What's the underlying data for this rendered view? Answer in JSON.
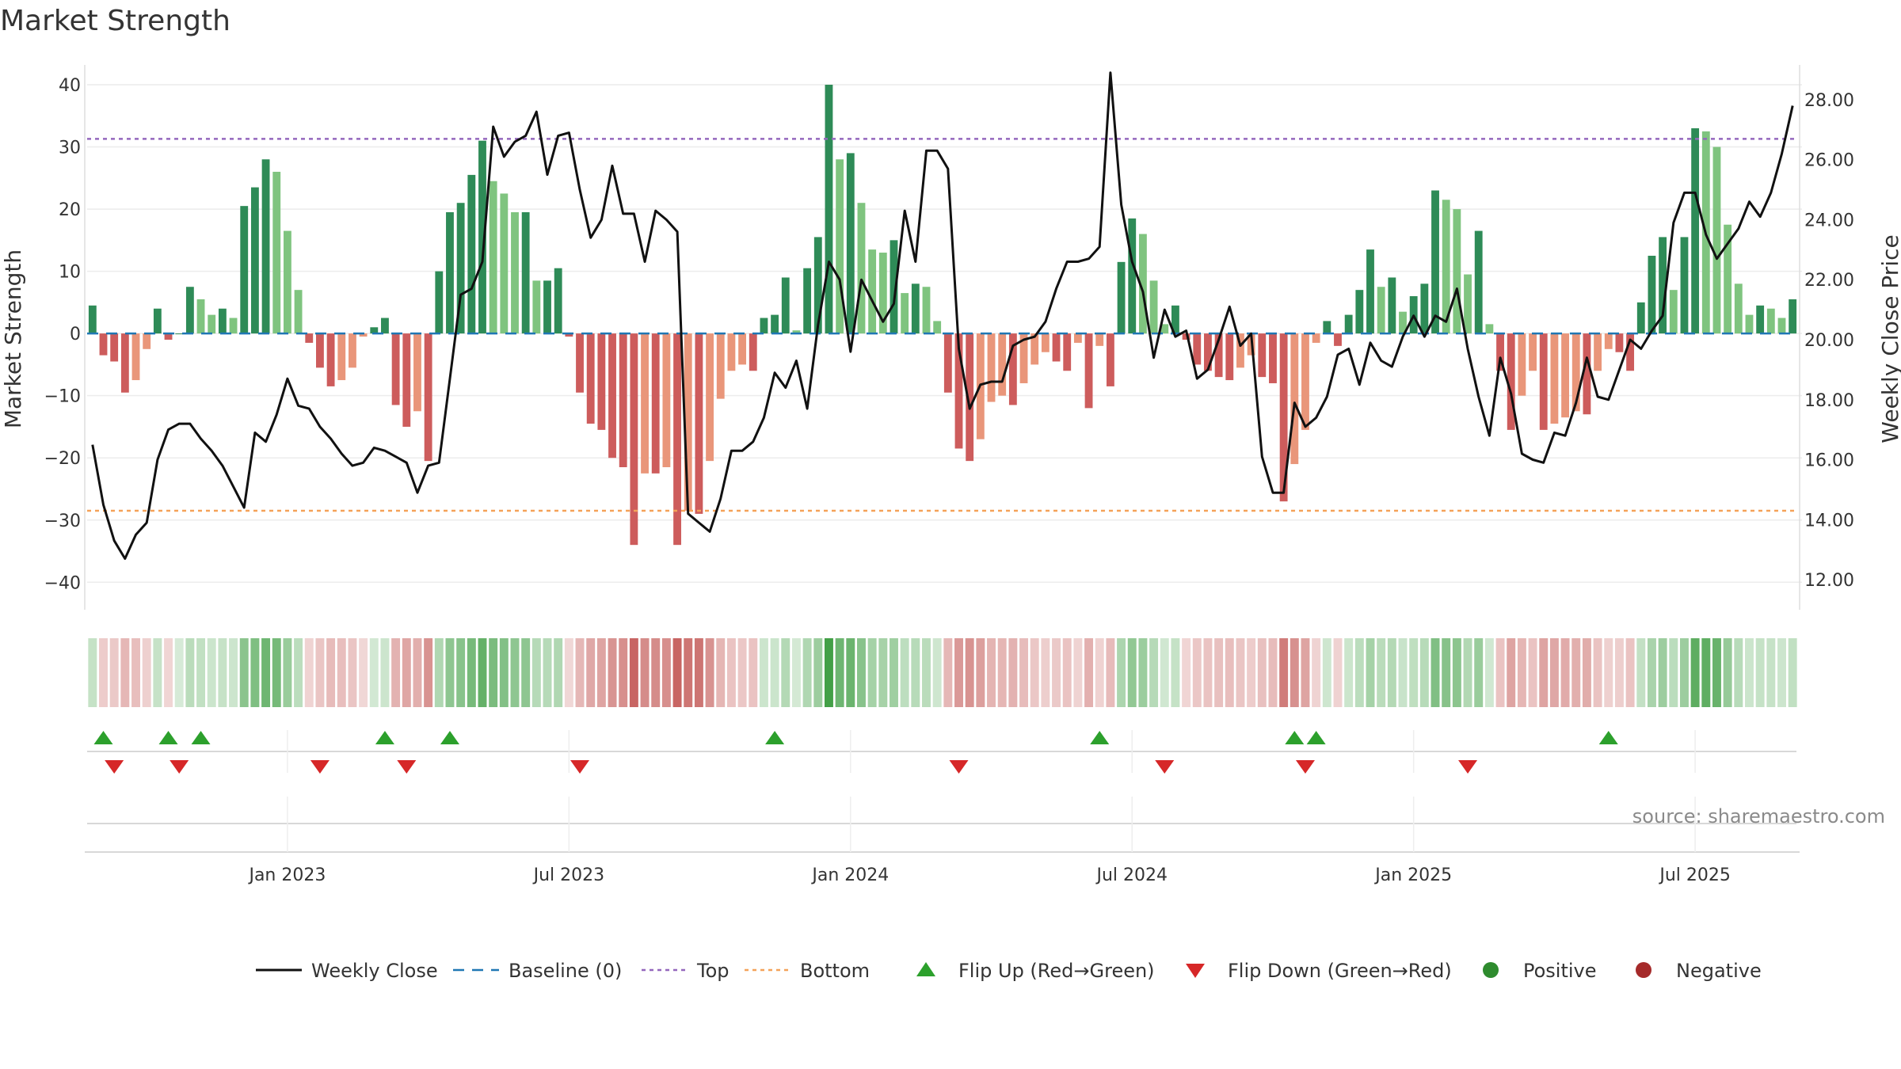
{
  "chart_data": {
    "type": "bar",
    "title": "Market Strength",
    "ylabel_left": "Market Strength",
    "ylabel_right": "Weekly Close Price",
    "ylim_left": [
      -42,
      40
    ],
    "ylim_right": [
      11.5,
      28.5
    ],
    "left_ticks": [
      40,
      30,
      20,
      10,
      0,
      -10,
      -20,
      -30,
      -40
    ],
    "left_tick_labels": [
      "40",
      "30",
      "20",
      "10",
      "0",
      "−10",
      "−20",
      "−30",
      "−40"
    ],
    "right_ticks": [
      28,
      26,
      24,
      22,
      20,
      18,
      16,
      14,
      12
    ],
    "right_tick_labels": [
      "28.00",
      "26.00",
      "24.00",
      "22.00",
      "20.00",
      "18.00",
      "16.00",
      "14.00",
      "12.00"
    ],
    "x_tick_week_index": [
      18,
      44,
      70,
      96,
      122,
      148
    ],
    "x_tick_labels": [
      "Jan 2023",
      "Jul 2023",
      "Jan 2024",
      "Jul 2024",
      "Jan 2025",
      "Jul 2025"
    ],
    "top_line": 31.3,
    "bottom_line": -28.5,
    "strength": [
      4.5,
      -3.5,
      -4.5,
      -9.5,
      -7.5,
      -2.5,
      4,
      -1,
      0,
      7.5,
      5.5,
      3,
      4,
      2.5,
      20.5,
      23.5,
      28,
      26,
      16.5,
      7,
      -1.5,
      -5.5,
      -8.5,
      -7.5,
      -5.5,
      -0.5,
      1,
      2.5,
      -11.5,
      -15,
      -12.5,
      -20.5,
      10,
      19.5,
      21,
      25.5,
      31,
      24.5,
      22.5,
      19.5,
      19.5,
      8.5,
      8.5,
      10.5,
      -0.5,
      -9.5,
      -14.5,
      -15.5,
      -20,
      -21.5,
      -34,
      -22.5,
      -22.5,
      -21.5,
      -34,
      -28.5,
      -29,
      -20.5,
      -10.5,
      -6,
      -5,
      -6,
      2.5,
      3,
      9,
      0.5,
      10.5,
      15.5,
      40,
      28,
      29,
      21,
      13.5,
      13,
      15,
      6.5,
      8,
      7.5,
      2,
      -9.5,
      -18.5,
      -20.5,
      -17,
      -11,
      -10,
      -11.5,
      -8,
      -5,
      -3,
      -4.5,
      -6,
      -1.5,
      -12,
      -2,
      -8.5,
      11.5,
      18.5,
      16,
      8.5,
      1.5,
      4.5,
      -1,
      -5,
      -6,
      -7,
      -7.5,
      -5.5,
      -3.5,
      -7,
      -8,
      -27,
      -21,
      -15.5,
      -1.5,
      2,
      -2,
      3,
      7,
      13.5,
      7.5,
      9,
      3.5,
      6,
      8,
      23,
      21.5,
      20,
      9.5,
      16.5,
      1.5,
      -6,
      -15.5,
      -10,
      -6,
      -15.5,
      -14.5,
      -13.5,
      -12.5,
      -13,
      -6,
      -2.5,
      -3,
      -6,
      5,
      12.5,
      15.5,
      7,
      15.5,
      33,
      32.5,
      30,
      17.5,
      8,
      3,
      4.5,
      4,
      2.5,
      5.5
    ],
    "price": [
      16.5,
      14.5,
      13.3,
      12.7,
      13.5,
      13.9,
      16.0,
      17.0,
      17.2,
      17.2,
      16.7,
      16.3,
      15.8,
      15.1,
      14.4,
      16.9,
      16.6,
      17.5,
      18.7,
      17.8,
      17.7,
      17.1,
      16.7,
      16.2,
      15.8,
      15.9,
      16.4,
      16.3,
      16.1,
      15.9,
      14.9,
      15.8,
      15.9,
      18.7,
      21.5,
      21.7,
      22.6,
      27.1,
      26.1,
      26.6,
      26.8,
      27.6,
      25.5,
      26.8,
      26.9,
      25.0,
      23.4,
      24.0,
      25.8,
      24.2,
      24.2,
      22.6,
      24.3,
      24.0,
      23.6,
      14.2,
      13.9,
      13.6,
      14.7,
      16.3,
      16.3,
      16.6,
      17.4,
      18.9,
      18.4,
      19.3,
      17.7,
      20.5,
      22.6,
      22.0,
      19.6,
      22.0,
      21.3,
      20.6,
      21.2,
      24.3,
      22.6,
      26.3,
      26.3,
      25.7,
      19.7,
      17.7,
      18.5,
      18.6,
      18.6,
      19.8,
      20.0,
      20.1,
      20.6,
      21.7,
      22.6,
      22.6,
      22.7,
      23.1,
      28.9,
      24.5,
      22.6,
      21.6,
      19.4,
      21.0,
      20.1,
      20.3,
      18.7,
      19.0,
      20.0,
      21.1,
      19.8,
      20.2,
      16.1,
      14.9,
      14.9,
      17.9,
      17.1,
      17.4,
      18.1,
      19.5,
      19.7,
      18.5,
      19.9,
      19.3,
      19.1,
      20.1,
      20.8,
      20.1,
      20.8,
      20.6,
      21.7,
      19.7,
      18.1,
      16.8,
      19.4,
      18.2,
      16.2,
      16.0,
      15.9,
      16.9,
      16.8,
      17.9,
      19.4,
      18.1,
      18.0,
      19.0,
      20.0,
      19.7,
      20.3,
      20.8,
      23.9,
      24.9,
      24.9,
      23.5,
      22.7,
      23.2,
      23.7,
      24.6,
      24.1,
      24.9,
      26.2,
      27.8
    ],
    "flip_up_week_index": [
      1,
      7,
      10,
      27,
      33,
      63,
      93,
      111,
      113,
      140
    ],
    "flip_down_week_index": [
      2,
      8,
      21,
      29,
      45,
      80,
      99,
      112,
      127
    ],
    "legend": [
      {
        "label": "Weekly Close",
        "symbol": "line",
        "color": "#111111"
      },
      {
        "label": "Baseline (0)",
        "symbol": "dash",
        "color": "#1f77b4"
      },
      {
        "label": "Top",
        "symbol": "dot",
        "color": "#9467bd"
      },
      {
        "label": "Bottom",
        "symbol": "dot",
        "color": "#f4a259"
      },
      {
        "label": "Flip Up (Red→Green)",
        "symbol": "triangle-up",
        "color": "#2ca02c"
      },
      {
        "label": "Flip Down (Green→Red)",
        "symbol": "triangle-down",
        "color": "#d62728"
      },
      {
        "label": "Positive",
        "symbol": "circle",
        "color": "#2e8b2e"
      },
      {
        "label": "Negative",
        "symbol": "circle",
        "color": "#a52a2a"
      }
    ],
    "source": "source: sharemaestro.com",
    "colors": {
      "pos_strong": "#2e8b57",
      "pos_light": "#7fc47f",
      "neg_strong": "#cd5c5c",
      "neg_light": "#e9967a",
      "price_line": "#111111",
      "top_line": "#9467bd",
      "bottom_line": "#f4a259",
      "baseline": "#1f77b4",
      "grid": "#ececec",
      "flip_up": "#2ca02c",
      "flip_down": "#d62728"
    }
  }
}
